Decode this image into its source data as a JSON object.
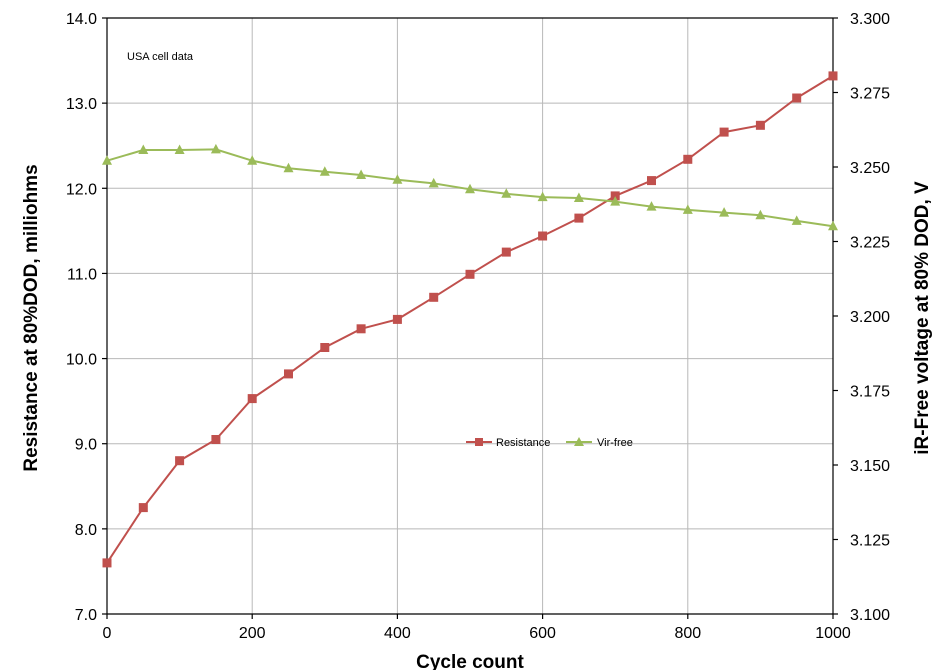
{
  "chart_data": {
    "type": "line",
    "annotation": "USA cell data",
    "xlabel": "Cycle count",
    "ylabel": "Resistance at 80%DOD, milliohms",
    "y2label": "iR-Free voltage at 80% DOD, V",
    "xlim": [
      0,
      1000
    ],
    "ylim": [
      7.0,
      14.0
    ],
    "y2lim": [
      3.1,
      3.3
    ],
    "x_ticks": [
      "0",
      "200",
      "400",
      "600",
      "800",
      "1000"
    ],
    "y_ticks": [
      "7.0",
      "8.0",
      "9.0",
      "10.0",
      "11.0",
      "12.0",
      "13.0",
      "14.0"
    ],
    "y2_ticks": [
      "3.100",
      "3.125",
      "3.150",
      "3.175",
      "3.200",
      "3.225",
      "3.250",
      "3.275",
      "3.300"
    ],
    "grid": true,
    "legend_position": "center-right",
    "x": [
      0,
      50,
      100,
      150,
      200,
      250,
      300,
      350,
      400,
      450,
      500,
      550,
      600,
      650,
      700,
      750,
      800,
      850,
      900,
      950,
      1000
    ],
    "series": [
      {
        "name": "Resistance",
        "axis": "left",
        "color": "#c0504d",
        "marker": "square",
        "values": [
          7.6,
          8.25,
          8.8,
          9.05,
          9.53,
          9.82,
          10.13,
          10.35,
          10.46,
          10.72,
          10.99,
          11.25,
          11.44,
          11.65,
          11.91,
          12.09,
          12.34,
          12.66,
          12.74,
          13.06,
          13.32
        ]
      },
      {
        "name": "Vir-free",
        "axis": "right",
        "color": "#9bbb59",
        "marker": "triangle",
        "values": [
          3.2521,
          3.2557,
          3.2557,
          3.2559,
          3.2521,
          3.2496,
          3.2484,
          3.2473,
          3.2457,
          3.2445,
          3.2425,
          3.241,
          3.2399,
          3.2396,
          3.2384,
          3.2367,
          3.2356,
          3.2347,
          3.2338,
          3.2319,
          3.2301
        ]
      }
    ]
  }
}
